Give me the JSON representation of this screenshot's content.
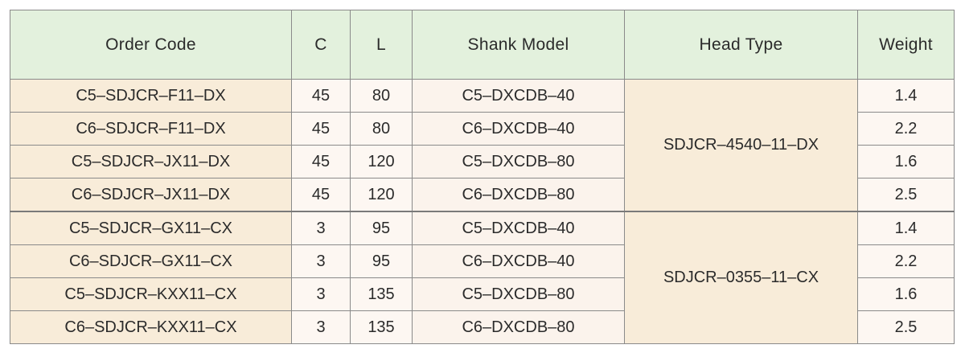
{
  "table": {
    "headers": {
      "order_code": "Order Code",
      "c": "C",
      "l": "L",
      "shank_model": "Shank Model",
      "head_type": "Head Type",
      "weight": "Weight"
    },
    "groups": [
      {
        "head_type": "SDJCR–4540–11–DX",
        "rows": [
          {
            "order_code": "C5–SDJCR–F11–DX",
            "c": "45",
            "l": "80",
            "shank_model": "C5–DXCDB–40",
            "weight": "1.4"
          },
          {
            "order_code": "C6–SDJCR–F11–DX",
            "c": "45",
            "l": "80",
            "shank_model": "C6–DXCDB–40",
            "weight": "2.2"
          },
          {
            "order_code": "C5–SDJCR–JX11–DX",
            "c": "45",
            "l": "120",
            "shank_model": "C5–DXCDB–80",
            "weight": "1.6"
          },
          {
            "order_code": "C6–SDJCR–JX11–DX",
            "c": "45",
            "l": "120",
            "shank_model": "C6–DXCDB–80",
            "weight": "2.5"
          }
        ]
      },
      {
        "head_type": "SDJCR–0355–11–CX",
        "rows": [
          {
            "order_code": "C5–SDJCR–GX11–CX",
            "c": "3",
            "l": "95",
            "shank_model": "C5–DXCDB–40",
            "weight": "1.4"
          },
          {
            "order_code": "C6–SDJCR–GX11–CX",
            "c": "3",
            "l": "95",
            "shank_model": "C6–DXCDB–40",
            "weight": "2.2"
          },
          {
            "order_code": "C5–SDJCR–KXX11–CX",
            "c": "3",
            "l": "135",
            "shank_model": "C5–DXCDB–80",
            "weight": "1.6"
          },
          {
            "order_code": "C6–SDJCR–KXX11–CX",
            "c": "3",
            "l": "135",
            "shank_model": "C6–DXCDB–80",
            "weight": "2.5"
          }
        ]
      }
    ]
  }
}
